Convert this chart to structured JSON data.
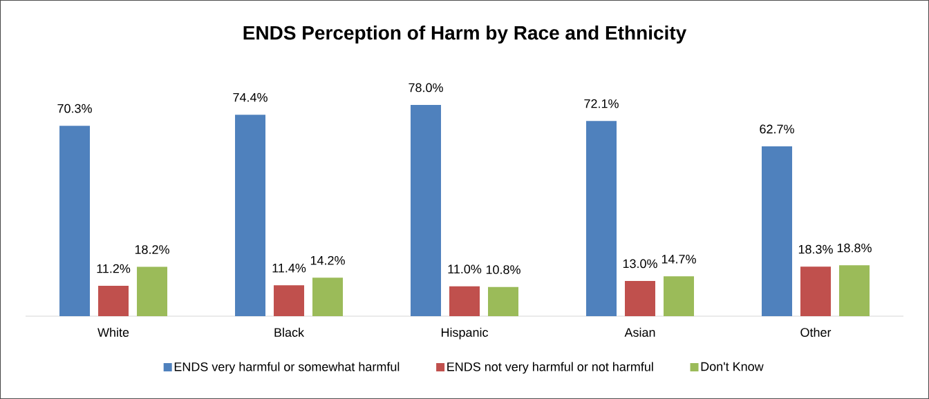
{
  "chart_data": {
    "type": "bar",
    "title": "ENDS Perception of Harm by Race and Ethnicity",
    "categories": [
      "White",
      "Black",
      "Hispanic",
      "Asian",
      "Other"
    ],
    "series": [
      {
        "name": "ENDS very harmful or somewhat harmful",
        "color": "#4f81bd",
        "values": [
          70.3,
          74.4,
          78.0,
          72.1,
          62.7
        ],
        "value_labels": [
          "70.3%",
          "74.4%",
          "78.0%",
          "72.1%",
          "62.7%"
        ]
      },
      {
        "name": "ENDS not very harmful or not harmful",
        "color": "#c0504d",
        "values": [
          11.2,
          11.4,
          11.0,
          13.0,
          18.3
        ],
        "value_labels": [
          "11.2%",
          "11.4%",
          "11.0%",
          "13.0%",
          "18.3%"
        ]
      },
      {
        "name": "Don't Know",
        "color": "#9bbb59",
        "values": [
          18.2,
          14.2,
          10.8,
          14.7,
          18.8
        ],
        "value_labels": [
          "18.2%",
          "14.2%",
          "10.8%",
          "14.7%",
          "18.8%"
        ]
      }
    ],
    "legend": "bottom"
  }
}
